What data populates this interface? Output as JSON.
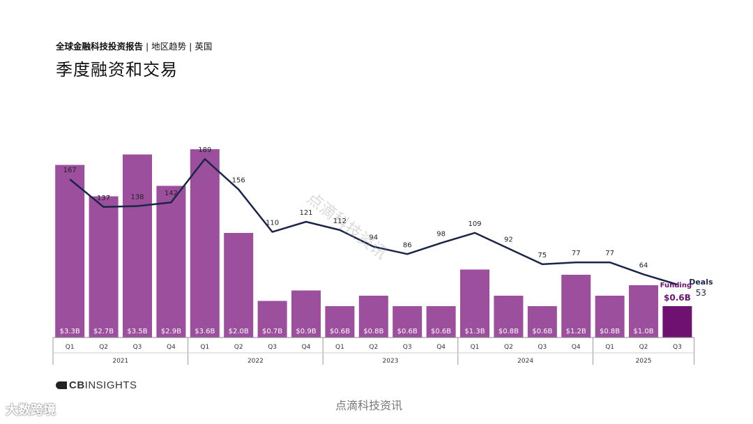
{
  "header": {
    "report_name": "全球金融科技投资报告",
    "breadcrumb": " | 地区趋势 | 英国",
    "title": "季度融资和交易"
  },
  "chart_data": {
    "type": "bar",
    "bar_value_prefix": "$",
    "bar_value_suffix": "B",
    "series": [
      {
        "name": "Funding",
        "values": [
          3.3,
          2.7,
          3.5,
          2.9,
          3.6,
          2.0,
          0.7,
          0.9,
          0.6,
          0.8,
          0.6,
          0.6,
          1.3,
          0.8,
          0.6,
          1.2,
          0.8,
          1.0,
          0.6
        ],
        "labels": [
          "$3.3B",
          "$2.7B",
          "$3.5B",
          "$2.9B",
          "$3.6B",
          "$2.0B",
          "$0.7B",
          "$0.9B",
          "$0.6B",
          "$0.8B",
          "$0.6B",
          "$0.6B",
          "$1.3B",
          "$0.8B",
          "$0.6B",
          "$1.2B",
          "$0.8B",
          "$1.0B",
          "$0.6B"
        ]
      },
      {
        "name": "Deals",
        "values": [
          167,
          137,
          138,
          142,
          189,
          156,
          110,
          121,
          112,
          94,
          86,
          98,
          109,
          92,
          75,
          77,
          77,
          64,
          53
        ]
      }
    ],
    "categories": [
      "Q1",
      "Q2",
      "Q3",
      "Q4",
      "Q1",
      "Q2",
      "Q3",
      "Q4",
      "Q1",
      "Q2",
      "Q3",
      "Q4",
      "Q1",
      "Q2",
      "Q3",
      "Q4",
      "Q1",
      "Q2",
      "Q3"
    ],
    "years": [
      {
        "label": "2021",
        "quarters": 4
      },
      {
        "label": "2022",
        "quarters": 4
      },
      {
        "label": "2023",
        "quarters": 4
      },
      {
        "label": "2024",
        "quarters": 4
      },
      {
        "label": "2025",
        "quarters": 3
      }
    ],
    "legend": {
      "funding": "Funding",
      "deals": "Deals"
    },
    "colors": {
      "bar": "#9b4f9d",
      "bar_highlight": "#6e1170",
      "line": "#1b2547",
      "funding_text": "#6e1170"
    }
  },
  "footer": {
    "brand_prefix": "CB",
    "brand_name": "INSIGHTS",
    "watermark": "点滴科技资讯",
    "corner_watermark": "大数跨境"
  }
}
